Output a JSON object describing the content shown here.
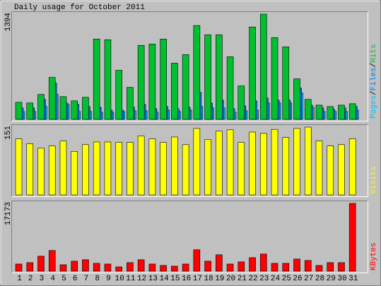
{
  "chart_data": [
    {
      "type": "bar",
      "title": "Daily usage for October 2011",
      "ylim": [
        0,
        1394
      ],
      "yticks": [
        1394
      ],
      "legend_separator": "/",
      "series": [
        {
          "name": "Pages",
          "color": "#00c0ff",
          "values": [
            104,
            104,
            170,
            330,
            198,
            104,
            104,
            94,
            94,
            104,
            113,
            113,
            94,
            122,
            104,
            122,
            170,
            151,
            151,
            94,
            113,
            122,
            217,
            217,
            217,
            349,
            160,
            104,
            104,
            104,
            122
          ]
        },
        {
          "name": "Files",
          "color": "#0080ff",
          "values": [
            151,
            151,
            264,
            480,
            217,
            198,
            170,
            160,
            122,
            122,
            160,
            198,
            141,
            170,
            141,
            160,
            358,
            217,
            254,
            141,
            179,
            245,
            283,
            254,
            254,
            415,
            188,
            151,
            132,
            151,
            170
          ]
        },
        {
          "name": "Hits",
          "color": "#00c030",
          "values": [
            226,
            217,
            330,
            556,
            301,
            245,
            292,
            1064,
            1055,
            650,
            424,
            980,
            998,
            1064,
            744,
            857,
            1243,
            1121,
            1121,
            829,
            443,
            1224,
            1394,
            1083,
            961,
            537,
            264,
            188,
            170,
            188,
            207
          ]
        }
      ]
    },
    {
      "type": "bar",
      "ylim": [
        0,
        151
      ],
      "yticks": [
        151
      ],
      "series": [
        {
          "name": "Visits",
          "color": "#ffff00",
          "values": [
            125,
            114,
            104,
            109,
            120,
            97,
            112,
            118,
            118,
            117,
            117,
            131,
            125,
            117,
            129,
            112,
            148,
            123,
            142,
            145,
            117,
            140,
            137,
            146,
            128,
            148,
            151,
            120,
            109,
            112,
            125
          ]
        }
      ]
    },
    {
      "type": "bar",
      "ylim": [
        0,
        17173
      ],
      "yticks": [
        17173
      ],
      "series": [
        {
          "name": "KBytes",
          "color": "#ff0000",
          "values": [
            1808,
            2170,
            3797,
            5243,
            1627,
            2531,
            2893,
            1989,
            1808,
            1085,
            2170,
            2893,
            1808,
            1446,
            1266,
            1808,
            5424,
            2531,
            4158,
            1808,
            2350,
            3435,
            4339,
            1989,
            1989,
            3074,
            2712,
            1446,
            2170,
            2170,
            17173
          ]
        }
      ],
      "categories": [
        "1",
        "2",
        "3",
        "4",
        "5",
        "6",
        "7",
        "8",
        "9",
        "10",
        "11",
        "12",
        "13",
        "14",
        "15",
        "16",
        "17",
        "18",
        "19",
        "20",
        "21",
        "22",
        "23",
        "24",
        "25",
        "26",
        "27",
        "28",
        "29",
        "30",
        "31"
      ],
      "category_colors": [
        "#00a000",
        "#00a000",
        "#0000c0",
        "#0000c0",
        "#0000c0",
        "#0000c0",
        "#0000c0",
        "#00a000",
        "#00a000",
        "#0000c0",
        "#0000c0",
        "#0000c0",
        "#0000c0",
        "#0000c0",
        "#00a000",
        "#00a000",
        "#0000c0",
        "#0000c0",
        "#0000c0",
        "#0000c0",
        "#0000c0",
        "#00a000",
        "#00a000",
        "#0000c0",
        "#0000c0",
        "#0000c0",
        "#0000c0",
        "#0000c0",
        "#00a000",
        "#00a000",
        "#0000c0"
      ]
    }
  ]
}
